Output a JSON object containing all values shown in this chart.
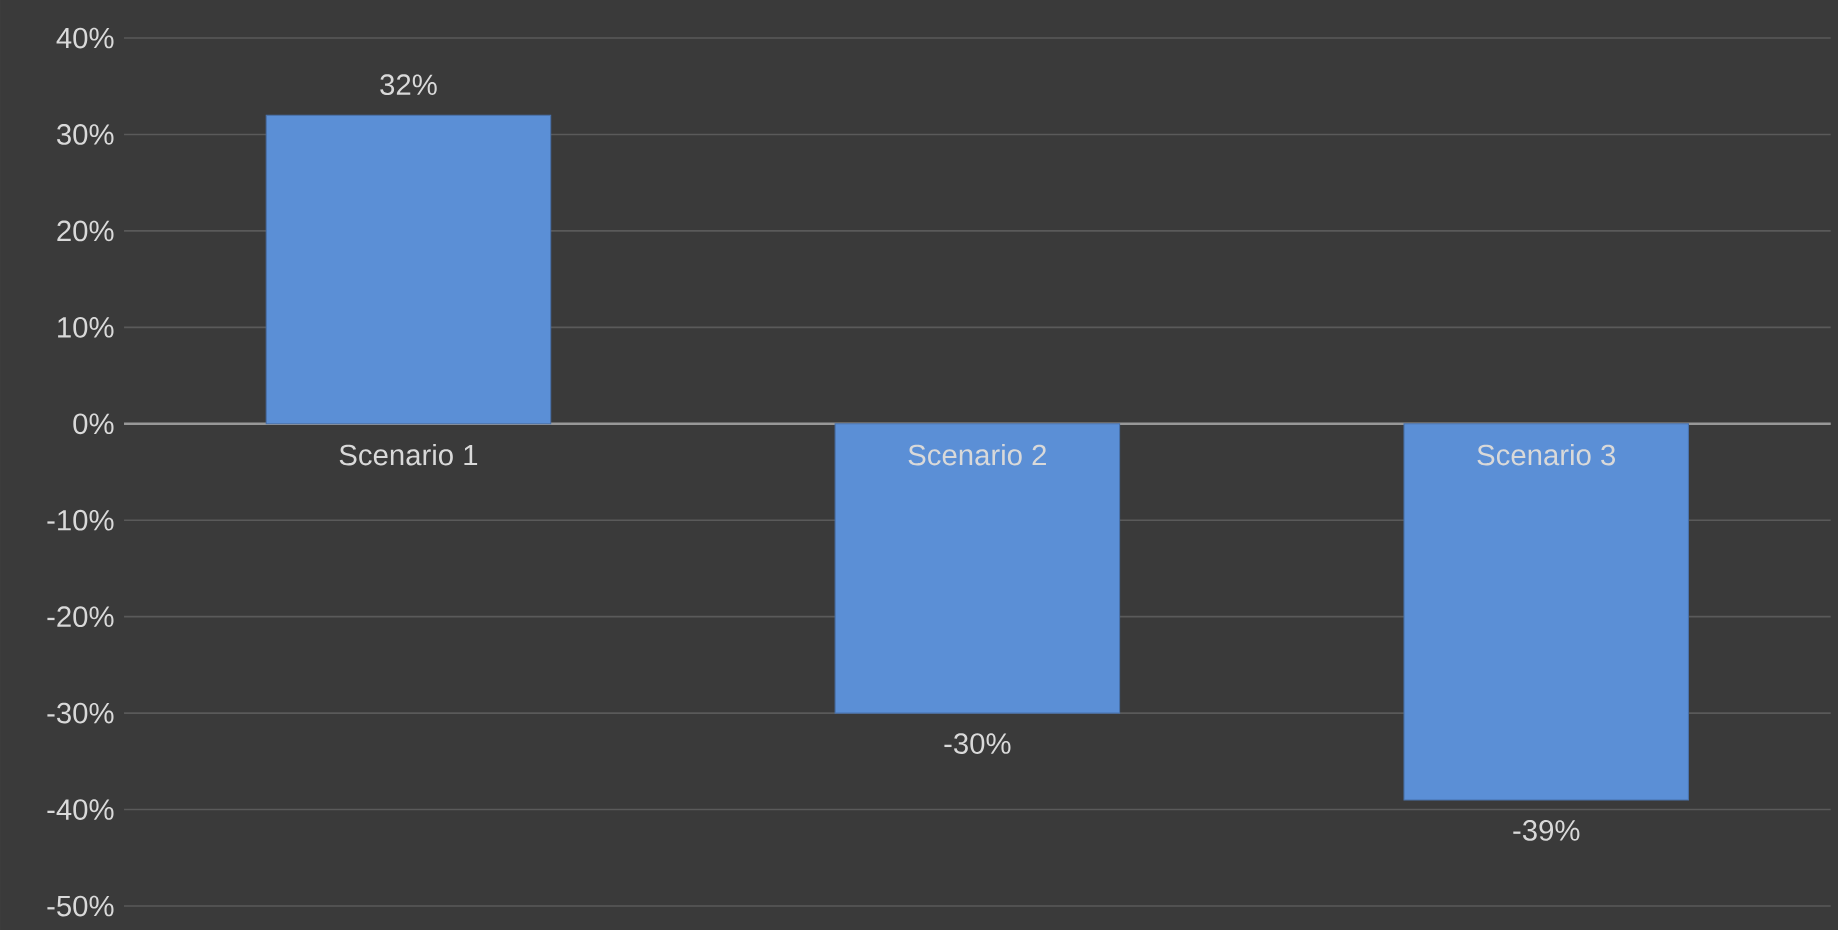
{
  "chart_data": {
    "type": "bar",
    "categories": [
      "Scenario 1",
      "Scenario 2",
      "Scenario 3"
    ],
    "values": [
      32,
      -30,
      -39
    ],
    "value_labels": [
      "32%",
      "-30%",
      "-39%"
    ],
    "color": "#5b8fd6",
    "ylim": [
      -50,
      40
    ],
    "yticks": [
      {
        "value": -50,
        "label": "-50%"
      },
      {
        "value": -40,
        "label": "-40%"
      },
      {
        "value": -30,
        "label": "-30%"
      },
      {
        "value": -20,
        "label": "-20%"
      },
      {
        "value": -10,
        "label": "-10%"
      },
      {
        "value": 0,
        "label": "0%"
      },
      {
        "value": 10,
        "label": "10%"
      },
      {
        "value": 20,
        "label": "20%"
      },
      {
        "value": 30,
        "label": "30%"
      },
      {
        "value": 40,
        "label": "40%"
      }
    ],
    "grid": "y"
  }
}
